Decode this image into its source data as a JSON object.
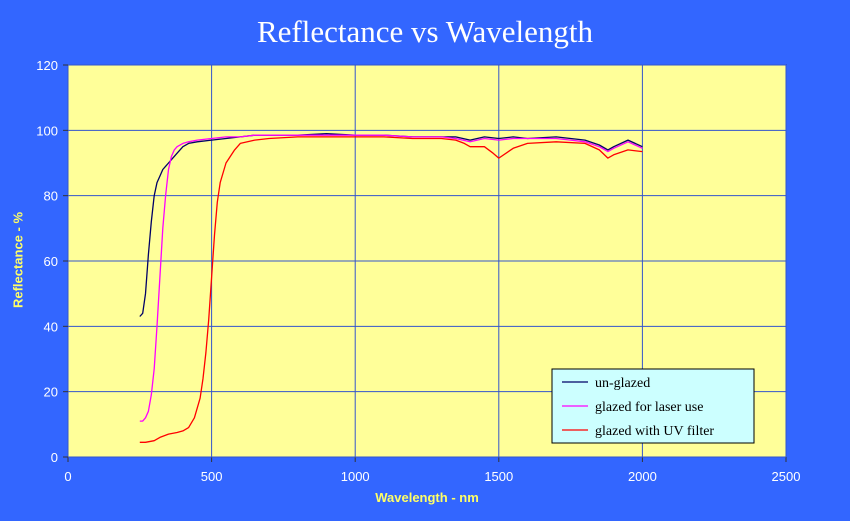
{
  "chart_data": {
    "type": "line",
    "title": "Reflectance vs Wavelength",
    "xlabel": "Wavelength - nm",
    "ylabel": "Reflectance - %",
    "xlim": [
      0,
      2500
    ],
    "ylim": [
      0,
      120
    ],
    "xticks": [
      0,
      500,
      1000,
      1500,
      2000,
      2500
    ],
    "yticks": [
      0,
      20,
      40,
      60,
      80,
      100,
      120
    ],
    "grid": true,
    "legend_position": "bottom-right",
    "plot_background": "#ffff99",
    "page_background": "#3366ff",
    "grid_color": "#3355cc",
    "series": [
      {
        "name": "un-glazed",
        "color": "#000066",
        "x": [
          250,
          260,
          270,
          280,
          290,
          300,
          310,
          320,
          330,
          340,
          350,
          360,
          380,
          400,
          420,
          450,
          500,
          550,
          600,
          650,
          700,
          800,
          900,
          1000,
          1100,
          1200,
          1300,
          1350,
          1400,
          1450,
          1500,
          1550,
          1600,
          1700,
          1750,
          1800,
          1850,
          1880,
          1900,
          1950,
          2000
        ],
        "y": [
          43,
          44,
          50,
          62,
          72,
          80,
          84,
          86,
          88,
          89,
          90,
          91,
          93,
          95,
          96,
          96.5,
          97,
          97.5,
          98,
          98.5,
          98.5,
          98.5,
          99,
          98.5,
          98.5,
          98,
          98,
          98,
          97,
          98,
          97.5,
          98,
          97.5,
          98,
          97.5,
          97,
          95.5,
          94,
          95,
          97,
          95
        ]
      },
      {
        "name": "glazed for laser use",
        "color": "#ff00ff",
        "x": [
          250,
          260,
          270,
          280,
          290,
          300,
          310,
          320,
          330,
          340,
          350,
          360,
          370,
          380,
          400,
          420,
          450,
          500,
          550,
          600,
          650,
          700,
          800,
          900,
          1000,
          1100,
          1200,
          1300,
          1350,
          1400,
          1450,
          1500,
          1550,
          1600,
          1700,
          1750,
          1800,
          1850,
          1880,
          1900,
          1950,
          2000
        ],
        "y": [
          11,
          11,
          12,
          14,
          19,
          27,
          40,
          55,
          70,
          80,
          88,
          92,
          94,
          95,
          96,
          96.5,
          97,
          97.5,
          98,
          98,
          98.5,
          98.5,
          98.5,
          98.5,
          98.5,
          98.5,
          98,
          98,
          97.5,
          96.5,
          97.5,
          97,
          97.5,
          97.5,
          97.5,
          97,
          96.5,
          95,
          93.5,
          94.5,
          96.5,
          94.5
        ]
      },
      {
        "name": "glazed with UV filter",
        "color": "#ff0000",
        "x": [
          250,
          270,
          300,
          320,
          350,
          380,
          400,
          420,
          440,
          460,
          470,
          480,
          490,
          500,
          510,
          520,
          530,
          550,
          580,
          600,
          650,
          700,
          800,
          900,
          1000,
          1100,
          1200,
          1300,
          1350,
          1380,
          1400,
          1450,
          1480,
          1500,
          1550,
          1600,
          1700,
          1800,
          1850,
          1880,
          1900,
          1950,
          2000
        ],
        "y": [
          4.5,
          4.5,
          5,
          6,
          7,
          7.5,
          8,
          9,
          12,
          18,
          24,
          32,
          42,
          55,
          68,
          78,
          84,
          90,
          94,
          96,
          97,
          97.5,
          98,
          98,
          98,
          98,
          97.5,
          97.5,
          97,
          96,
          95,
          95,
          93,
          91.5,
          94.5,
          96,
          96.5,
          96,
          94,
          91.5,
          92.5,
          94,
          93.5
        ]
      }
    ]
  }
}
